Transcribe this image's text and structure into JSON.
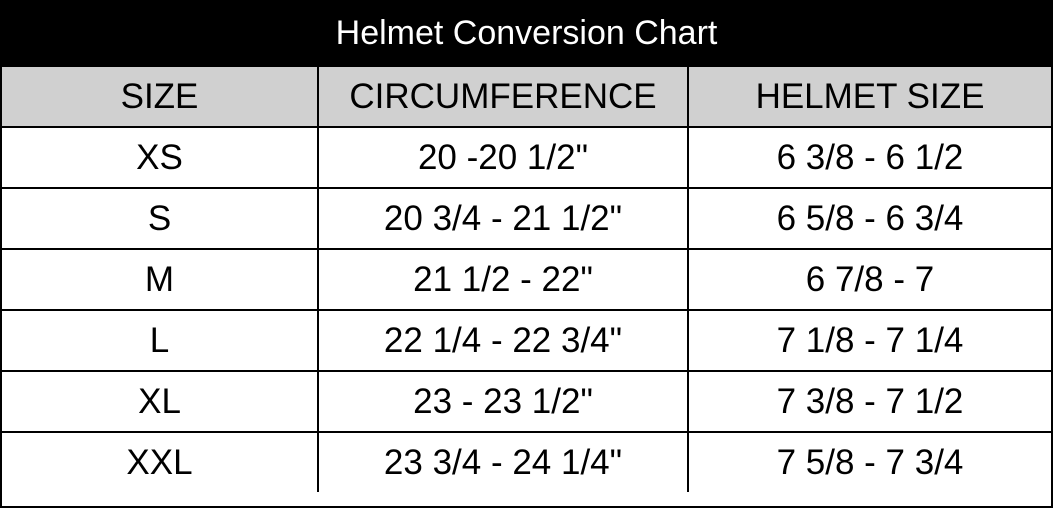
{
  "title": "Helmet Conversion Chart",
  "table": {
    "headers": [
      "SIZE",
      "CIRCUMFERENCE",
      "HELMET SIZE"
    ],
    "rows": [
      [
        "XS",
        "20 -20 1/2\"",
        "6 3/8 - 6 1/2"
      ],
      [
        "S",
        "20 3/4 - 21 1/2\"",
        "6 5/8 - 6 3/4"
      ],
      [
        "M",
        "21 1/2 - 22\"",
        "6 7/8 - 7"
      ],
      [
        "L",
        "22 1/4 - 22 3/4\"",
        "7 1/8 - 7 1/4"
      ],
      [
        "XL",
        "23 - 23 1/2\"",
        "7 3/8 - 7 1/2"
      ],
      [
        "XXL",
        "23 3/4 - 24 1/4\"",
        "7 5/8 - 7 3/4"
      ]
    ]
  }
}
